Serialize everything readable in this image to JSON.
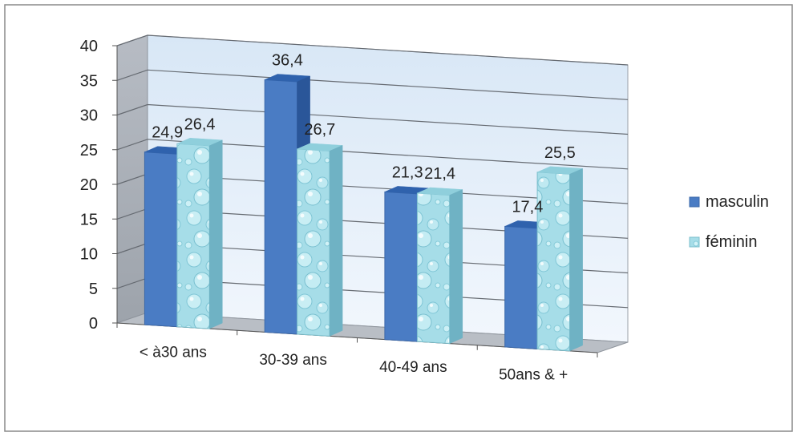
{
  "chart_data": {
    "type": "bar",
    "title": "",
    "xlabel": "",
    "ylabel": "",
    "categories": [
      "< à30 ans",
      "30-39 ans",
      "40-49 ans",
      "50ans & +"
    ],
    "series": [
      {
        "name": "masculin",
        "values": [
          24.9,
          36.4,
          21.3,
          17.4
        ],
        "labels": [
          "24,9",
          "36,4",
          "21,3",
          "17,4"
        ],
        "color": "#4a7cc4"
      },
      {
        "name": "féminin",
        "values": [
          26.4,
          26.7,
          21.4,
          25.5
        ],
        "labels": [
          "26,4",
          "26,7",
          "21,4",
          "25,5"
        ],
        "color": "#a6dde8"
      }
    ],
    "ylim": [
      0,
      40
    ],
    "yticks": [
      0,
      5,
      10,
      15,
      20,
      25,
      30,
      35,
      40
    ],
    "grid": true,
    "legend": "right",
    "style": "3d-clustered-column"
  }
}
